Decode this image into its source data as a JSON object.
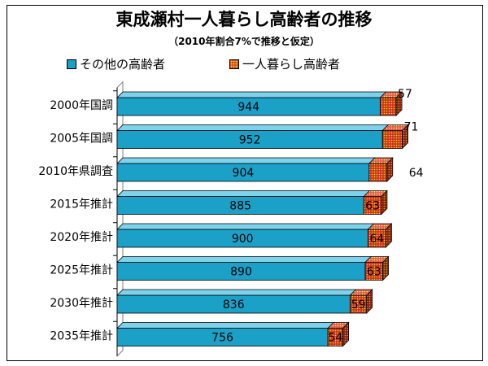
{
  "chart_data": {
    "type": "bar",
    "orientation": "horizontal",
    "stacked": true,
    "style": "3d",
    "title": "東成瀬村一人暮らし高齢者の推移",
    "subtitle": "（2010年割合7%で推移と仮定）",
    "categories": [
      "2000年国調",
      "2005年国調",
      "2010年県調査",
      "2015年推計",
      "2020年推計",
      "2025年推計",
      "2030年推計",
      "2035年推計"
    ],
    "series": [
      {
        "name": "その他の高齢者",
        "values": [
          944,
          952,
          904,
          885,
          900,
          890,
          836,
          756
        ],
        "color": "#1ba0c8"
      },
      {
        "name": "一人暮らし高齢者",
        "values": [
          57,
          71,
          64,
          63,
          64,
          63,
          59,
          54
        ],
        "color": "#cc3322",
        "pattern": "dotted-yellow"
      }
    ],
    "xlim": [
      0,
      1100
    ],
    "legend_position": "top",
    "grid": false
  }
}
